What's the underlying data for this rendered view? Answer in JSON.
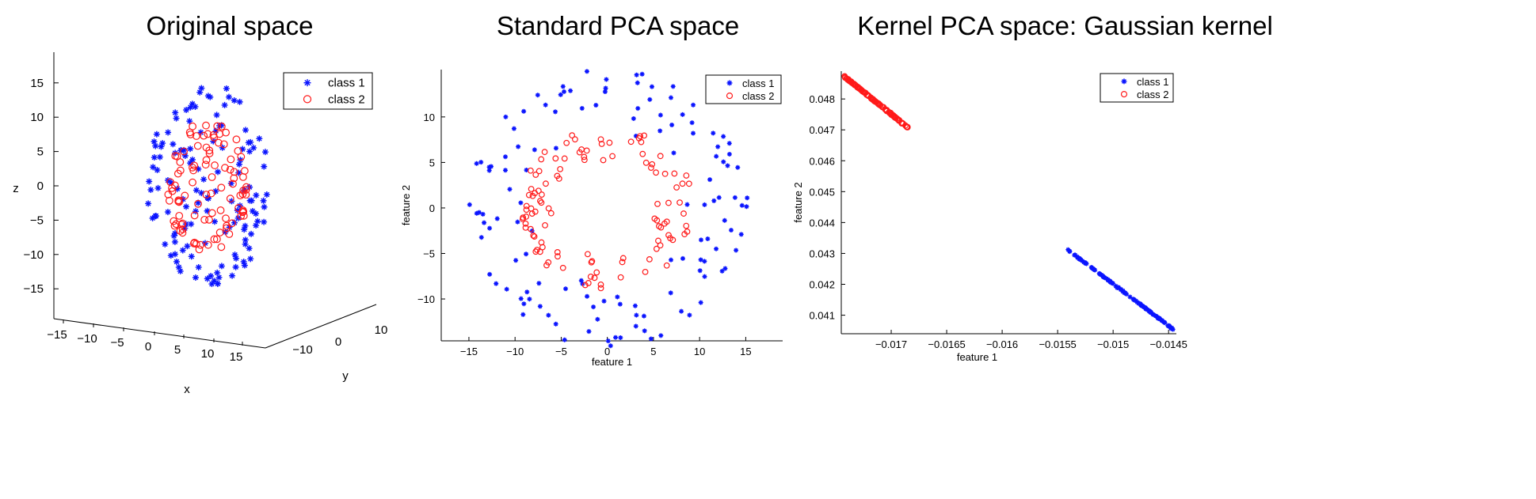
{
  "colors": {
    "class1": "#0a14ff",
    "class2": "#ff1a1a"
  },
  "chart_data": [
    {
      "type": "scatter",
      "title": "Original space",
      "projection": "3d",
      "xlabel": "x",
      "ylabel": "y",
      "zlabel": "z",
      "xticks": [
        "−15",
        "−10",
        "−5",
        "0",
        "5",
        "10",
        "15"
      ],
      "yticks": [
        "−10",
        "0",
        "10"
      ],
      "zticks": [
        "15",
        "10",
        "5",
        "0",
        "−5",
        "−10",
        "−15"
      ],
      "zlim": [
        -18,
        18
      ],
      "legend": {
        "position": "top-right",
        "entries": [
          "class 1",
          "class 2"
        ]
      },
      "series": [
        {
          "name": "class 1",
          "marker": "asterisk",
          "shape": "sphere",
          "radius": 15,
          "count": 140
        },
        {
          "name": "class 2",
          "marker": "circle",
          "shape": "sphere",
          "radius": 10,
          "count": 100
        }
      ]
    },
    {
      "type": "scatter",
      "title": "Standard PCA space",
      "xlabel": "feature 1",
      "ylabel": "feature 2",
      "xlim": [
        -18,
        19
      ],
      "ylim": [
        -14.6,
        15.2
      ],
      "xticks": [
        -15,
        -10,
        -5,
        0,
        5,
        10,
        15
      ],
      "yticks": [
        10,
        5,
        0,
        -5,
        -10
      ],
      "legend": {
        "position": "top-right",
        "entries": [
          "class 1",
          "class 2"
        ]
      },
      "series": [
        {
          "name": "class 1",
          "marker": "asterisk",
          "shape": "ring",
          "radius": 14.5,
          "count": 130
        },
        {
          "name": "class 2",
          "marker": "circle",
          "shape": "ring",
          "radius": 8.5,
          "count": 110
        }
      ]
    },
    {
      "type": "scatter",
      "title": "Kernel PCA space: Gaussian kernel",
      "xlabel": "feature 1",
      "ylabel": "feature 2",
      "xlim": [
        -0.01745,
        -0.01443
      ],
      "ylim": [
        0.0404,
        0.0489
      ],
      "xticks": [
        "−0.017",
        "−0.0165",
        "−0.016",
        "−0.0155",
        "−0.015",
        "−0.0145"
      ],
      "xtick_values": [
        -0.017,
        -0.0165,
        -0.016,
        -0.0155,
        -0.015,
        -0.0145
      ],
      "yticks": [
        0.048,
        0.047,
        0.046,
        0.045,
        0.044,
        0.043,
        0.042,
        0.041
      ],
      "legend": {
        "position": "top-right",
        "entries": [
          "class 1",
          "class 2"
        ]
      },
      "series": [
        {
          "name": "class 1",
          "marker": "asterisk",
          "line_from": [
            -0.01542,
            0.04315
          ],
          "line_to": [
            -0.01446,
            0.04055
          ],
          "count": 120
        },
        {
          "name": "class 2",
          "marker": "circle",
          "line_from": [
            -0.01742,
            0.04872
          ],
          "line_to": [
            -0.01685,
            0.04708
          ],
          "count": 120
        }
      ]
    }
  ]
}
